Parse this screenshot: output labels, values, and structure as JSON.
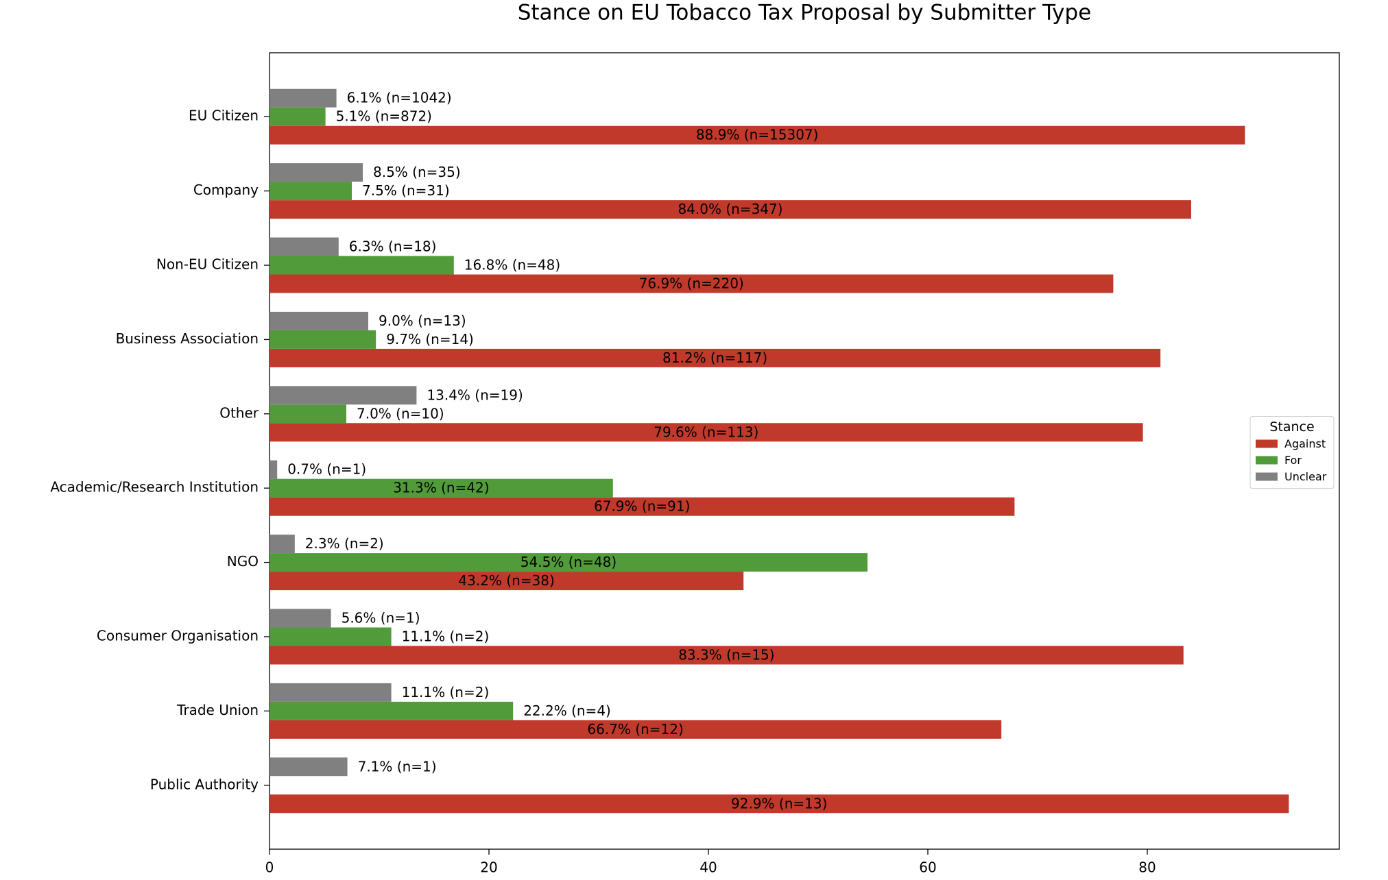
{
  "chart_data": {
    "type": "barh",
    "title": "Stance on EU Tobacco Tax Proposal by Submitter Type",
    "categories": [
      "EU Citizen",
      "Company",
      "Non-EU Citizen",
      "Business Association",
      "Other",
      "Academic/Research Institution",
      "NGO",
      "Consumer Organisation",
      "Trade Union",
      "Public Authority"
    ],
    "series": [
      {
        "name": "Against",
        "color": "#c0392b",
        "values": [
          88.9,
          84.0,
          76.9,
          81.2,
          79.6,
          67.9,
          43.2,
          83.3,
          66.7,
          92.9
        ],
        "value_labels": [
          "88.9% (n=15307)",
          "84.0% (n=347)",
          "76.9% (n=220)",
          "81.2% (n=117)",
          "79.6% (n=113)",
          "67.9% (n=91)",
          "43.2% (n=38)",
          "83.3% (n=15)",
          "66.7% (n=12)",
          "92.9% (n=13)"
        ]
      },
      {
        "name": "For",
        "color": "#529b3a",
        "values": [
          5.1,
          7.5,
          16.8,
          9.7,
          7.0,
          31.3,
          54.5,
          11.1,
          22.2,
          null
        ],
        "value_labels": [
          "5.1% (n=872)",
          "7.5% (n=31)",
          "16.8% (n=48)",
          "9.7% (n=14)",
          "7.0% (n=10)",
          "31.3% (n=42)",
          "54.5% (n=48)",
          "11.1% (n=2)",
          "22.2% (n=4)",
          null
        ]
      },
      {
        "name": "Unclear",
        "color": "#808080",
        "values": [
          6.1,
          8.5,
          6.3,
          9.0,
          13.4,
          0.7,
          2.3,
          5.6,
          11.1,
          7.1
        ],
        "value_labels": [
          "6.1% (n=1042)",
          "8.5% (n=35)",
          "6.3% (n=18)",
          "9.0% (n=13)",
          "13.4% (n=19)",
          "0.7% (n=1)",
          "2.3% (n=2)",
          "5.6% (n=1)",
          "11.1% (n=2)",
          "7.1% (n=1)"
        ]
      }
    ],
    "xlim": [
      0,
      97.5
    ],
    "xticks": [
      0,
      20,
      40,
      60,
      80
    ],
    "legend_title": "Stance",
    "legend": "center right"
  }
}
